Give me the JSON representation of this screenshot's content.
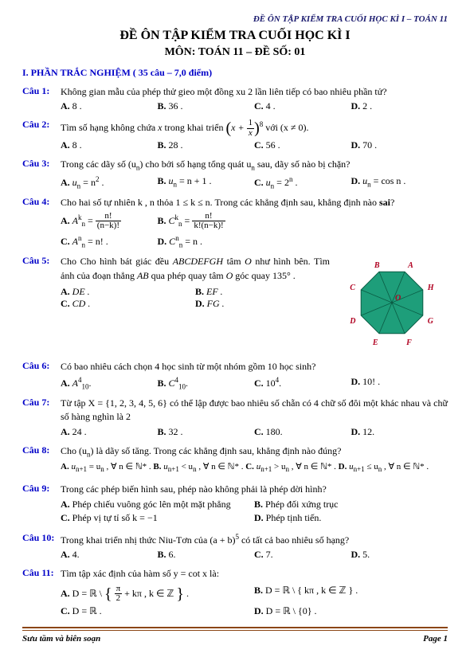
{
  "header": {
    "top": "ĐỀ ÔN TẬP KIỂM TRA CUỐI HỌC KÌ I  –  TOÁN  11"
  },
  "titles": {
    "main": "ĐỀ ÔN TẬP KIỂM TRA CUỐI HỌC KÌ I",
    "sub": "MÔN: TOÁN 11 – ĐỀ SỐ: 01"
  },
  "section": {
    "heading": "I. PHẦN TRẮC NGHIỆM ( 35 câu – 7,0 điểm)"
  },
  "q_label_prefix": "Câu ",
  "q1": {
    "n": "1:",
    "stem": "Không gian mẫu của phép thử gieo một đồng xu  2  lần liên tiếp có bao nhiêu phần tử?",
    "A": "8 .",
    "B": "36 .",
    "C": "4 .",
    "D": "2 ."
  },
  "q2": {
    "n": "2:",
    "stem_a": "Tìm số hạng không chứa ",
    "x": "x",
    "stem_b": " trong khai triển ",
    "expr_x": "x + ",
    "frac_n": "1",
    "frac_d": "x",
    "power": "8",
    "cond": " với (x ≠ 0).",
    "A": "8 .",
    "B": "28 .",
    "C": "56 .",
    "D": "70 ."
  },
  "q3": {
    "n": "3:",
    "stem_a": "Trong các dãy số (u",
    "stem_b": ")  cho bởi số hạng tổng quát  u",
    "stem_c": "  sau, dãy số nào bị chặn?",
    "A": "u",
    "Aeq": " = n",
    "Aexp": "2",
    "Adot": " .",
    "B": "u",
    "Beq": " = n + 1 .",
    "C": "u",
    "Ceq": " = 2",
    "Cexp": "n",
    "Cdot": " .",
    "D": "u",
    "Deq": " = cos n ."
  },
  "q4": {
    "n": "4:",
    "stem_a": "Cho hai số tự nhiên  k ,  n  thỏa 1 ≤ k ≤ n. Trong các khẳng định sau, khẳng định nào ",
    "sai": "sai",
    "stem_b": "?",
    "A_lhs": "A",
    "A_sup": "k",
    "A_sub": "n",
    "A_eq": " = ",
    "A_frac_n": "n!",
    "A_frac_d": "(n−k)!",
    "B_lhs": "C",
    "B_eq": " = ",
    "B_frac_n": "n!",
    "B_frac_d": "k!(n−k)!",
    "C_lhs": "A",
    "C_sup": "n",
    "C_sub": "n",
    "C_eq": " = n! .",
    "D_lhs": "C",
    "D_sup": "n",
    "D_sub": "n",
    "D_eq": " = n ."
  },
  "q5": {
    "n": "5:",
    "stem1": "Cho Cho hình bát giác đều  ",
    "poly": "ABCDEFGH",
    "stem2": "  tâm ",
    "O": "O",
    "stem3": "  như hình bên. Tìm ảnh của đoạn thẳng ",
    "AB": "AB",
    "stem4": "  qua phép quay tâm ",
    "stem5": "  góc quay 135° .",
    "A": "DE .",
    "B": "EF .",
    "C": "CD .",
    "D": "FG .",
    "labels": {
      "A": "A",
      "B": "B",
      "C": "C",
      "D": "D",
      "E": "E",
      "F": "F",
      "G": "G",
      "H": "H",
      "O": "O"
    },
    "poly_fill": "#1e9e7a",
    "poly_stroke": "#0a5c44",
    "label_color": "#b00020"
  },
  "q6": {
    "n": "6:",
    "stem": "Có bao nhiêu cách chọn  4  học sinh từ một nhóm gồm 10  học sinh?",
    "A_l": "A",
    "A_sup": "4",
    "A_sub": "10",
    "Adot": ".",
    "B_l": "C",
    "B_sup": "4",
    "B_sub": "10",
    "Bdot": ".",
    "C": "10",
    "C_sup": "4",
    "Cdot": ".",
    "D": "10! ."
  },
  "q7": {
    "n": "7:",
    "stem": "Từ tập  X = {1, 2, 3, 4, 5, 6}  có thể lập được bao nhiêu số chẵn có 4 chữ số đôi một khác nhau và chữ số hàng nghìn là 2",
    "A": "24 .",
    "B": "32 .",
    "C": "180.",
    "D": "12."
  },
  "q8": {
    "n": "8:",
    "stem_a": "Cho  (u",
    "stem_b": ")  là dãy số tăng. Trong các khẳng định sau, khẳng định nào đúng?",
    "A": "u",
    "Aeq": " = u",
    "Atail": "  , ∀ n ∈ ℕ* .",
    "B": "u",
    "Beq": " < u",
    "Btail": "  , ∀ n ∈ ℕ* . ",
    "C": "u",
    "Ceq": " > u",
    "Ctail": "  , ∀ n ∈ ℕ* .",
    "D": "u",
    "Deq": " ≤ u",
    "Dtail": "  , ∀ n ∈ ℕ* ."
  },
  "q9": {
    "n": "9:",
    "stem": "Trong các phép biến hình sau, phép nào không phải là phép dời hình?",
    "A": "Phép chiếu vuông góc lên một mặt phẳng",
    "B": "Phép đối xứng trục",
    "C": "Phép vị tự tỉ số  k = −1",
    "D": "Phép tịnh tiến."
  },
  "q10": {
    "n": "10:",
    "stem_a": "Trong khai triển nhị thức Niu-Tơn của (a + b)",
    "pow": "5",
    "stem_b": "  có tất cả bao nhiêu số hạng?",
    "A": "4.",
    "B": "6.",
    "C": "7.",
    "D": "5."
  },
  "q11": {
    "n": "11:",
    "stem": "Tìm tập xác định của hàm số  y = cot x  là:",
    "A_pre": "D = ℝ \\ ",
    "A_frac_n": "π",
    "A_frac_d": "2",
    "A_post": " + kπ , k ∈ ℤ",
    "B": "D = ℝ \\ { kπ , k ∈ ℤ } .",
    "C": "D = ℝ .",
    "D": "D = ℝ \\ {0} ."
  },
  "footer": {
    "left": "Sưu tầm và biên soạn",
    "right": "Page 1"
  }
}
